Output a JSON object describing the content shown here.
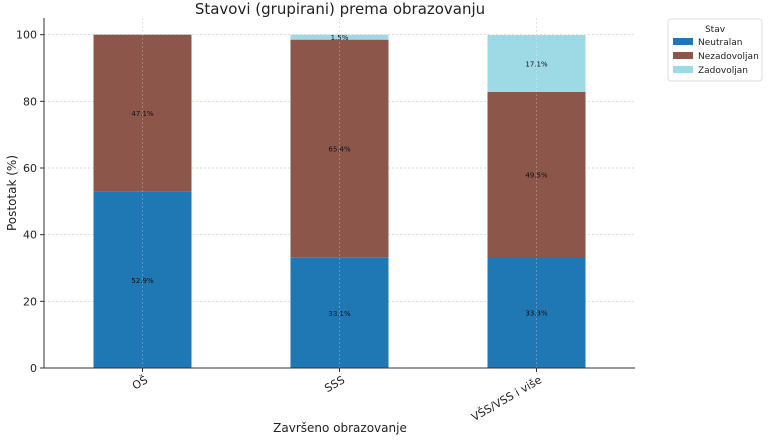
{
  "chart_data": {
    "type": "bar",
    "stacked": true,
    "title": "Stavovi (grupirani) prema obrazovanju",
    "xlabel": "Završeno obrazovanje",
    "ylabel": "Postotak (%)",
    "ylim": [
      0,
      105
    ],
    "yticks": [
      0,
      20,
      40,
      60,
      80,
      100
    ],
    "grid": true,
    "categories": [
      "OŠ",
      "SSS",
      "VŠS/VSS i više"
    ],
    "series": [
      {
        "name": "Neutralan",
        "color": "#1f77b4",
        "values": [
          52.9,
          33.1,
          33.3
        ],
        "labels": [
          "52.9%",
          "33.1%",
          "33.3%"
        ]
      },
      {
        "name": "Nezadovoljan",
        "color": "#8c564b",
        "values": [
          47.1,
          65.4,
          49.5
        ],
        "labels": [
          "47.1%",
          "65.4%",
          "49.5%"
        ]
      },
      {
        "name": "Zadovoljan",
        "color": "#9edae5",
        "values": [
          0,
          1.5,
          17.1
        ],
        "labels": [
          "",
          "1.5%",
          "17.1%"
        ]
      }
    ],
    "legend": {
      "title": "Stav",
      "placement": "outside-top-right"
    }
  }
}
